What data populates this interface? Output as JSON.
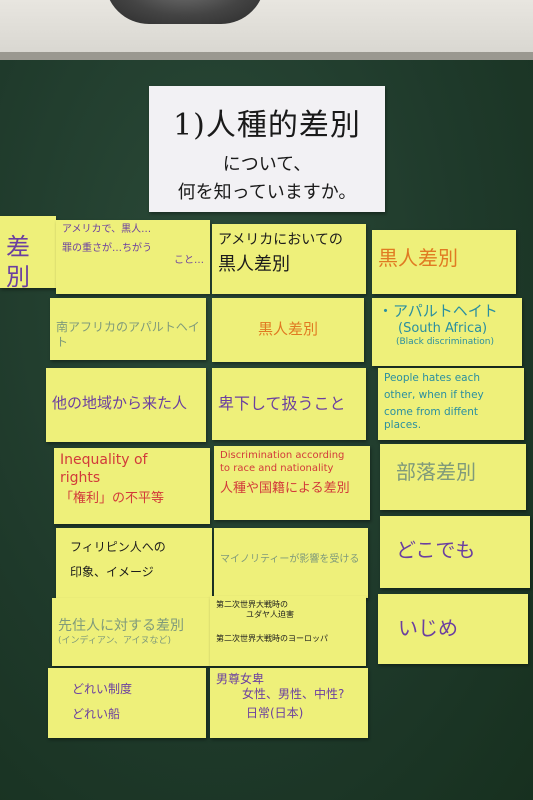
{
  "title_card": {
    "line1": "1)人種的差別",
    "line2": "について、",
    "line3": "何を知っていますか。"
  },
  "notes": {
    "n_left_edge": {
      "l1": "差別"
    },
    "n_c1_r1": {
      "l1": "アメリカで、黒人…",
      "l2": "罪の重さが…ちがう",
      "l3": "こと…"
    },
    "n_c2_r1": {
      "l1": "アメリカにおいての",
      "l2": "黒人差別"
    },
    "n_c3_r1": {
      "l1": "黒人差別"
    },
    "n_c1_r2": {
      "l1": "南アフリカのアパルトヘイト"
    },
    "n_c2_r2": {
      "l1": "黒人差別"
    },
    "n_c3_r2": {
      "l1": "・アパルトヘイト",
      "l2": "(South Africa)",
      "l3": "(Black discrimination)"
    },
    "n_c1_r3": {
      "l1": "他の地域から来た人"
    },
    "n_c2_r3": {
      "l1": "卑下して扱うこと"
    },
    "n_c3_r3": {
      "l1": "People hates each",
      "l2": "other, when if they",
      "l3": "come from diffent places."
    },
    "n_c1_r4": {
      "l1": "Inequality of",
      "l2": "rights",
      "l3": "「権利」の不平等"
    },
    "n_c2_r4": {
      "l1": "Discrimination according",
      "l2": "to race and nationality",
      "l3": "人種や国籍による差別"
    },
    "n_c3_r4": {
      "l1": "部落差別"
    },
    "n_c1_r5": {
      "l1": "フィリピン人への",
      "l2": "印象、イメージ"
    },
    "n_c2_r5": {
      "l1": "マイノリティーが影響を受ける"
    },
    "n_c3_r5": {
      "l1": "どこでも"
    },
    "n_c1_r6": {
      "l1": "先住人に対する差別",
      "l2": "(インディアン、アイヌなど)"
    },
    "n_c2_r6": {
      "l1": "第二次世界大戦時の",
      "l2": "ユダヤ人迫害",
      "l3": "第二次世界大戦時のヨーロッパ"
    },
    "n_c3_r6": {
      "l1": "いじめ"
    },
    "n_c1_r7": {
      "l1": "どれい制度",
      "l2": "どれい船"
    },
    "n_c2_r7": {
      "l1": "男尊女卑",
      "l2": "女性、男性、中性?",
      "l3": "日常(日本)"
    }
  }
}
